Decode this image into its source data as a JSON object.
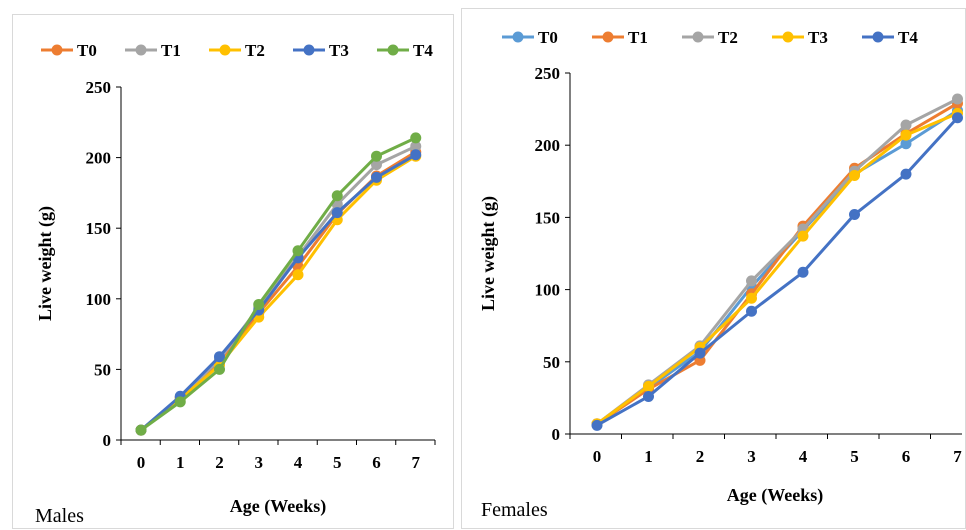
{
  "chart_data": [
    {
      "type": "line",
      "xlabel": "Age (Weeks)",
      "ylabel": "Live weight (g)",
      "caption": "Males",
      "x": [
        0,
        1,
        2,
        3,
        4,
        5,
        6,
        7
      ],
      "xticks": [
        "0",
        "1",
        "2",
        "3",
        "4",
        "5",
        "6",
        "7"
      ],
      "ylim": [
        0,
        250
      ],
      "yticks": [
        "0",
        "50",
        "100",
        "150",
        "200",
        "250"
      ],
      "grid": false,
      "legend_position": "top",
      "series": [
        {
          "name": "T0",
          "color": "#ED7D31",
          "values": [
            7,
            30,
            55,
            90,
            123,
            160,
            187,
            204
          ]
        },
        {
          "name": "T1",
          "color": "#A5A5A5",
          "values": [
            7,
            30,
            57,
            94,
            130,
            167,
            195,
            208
          ]
        },
        {
          "name": "T2",
          "color": "#FFC000",
          "values": [
            7,
            29,
            53,
            87,
            117,
            156,
            184,
            201
          ]
        },
        {
          "name": "T3",
          "color": "#4472C4",
          "values": [
            7,
            31,
            59,
            92,
            129,
            161,
            186,
            202
          ]
        },
        {
          "name": "T4",
          "color": "#70AD47",
          "values": [
            7,
            27,
            50,
            96,
            134,
            173,
            201,
            214
          ]
        }
      ]
    },
    {
      "type": "line",
      "xlabel": "Age (Weeks)",
      "ylabel": "Live weight (g)",
      "caption": "Females",
      "x": [
        0,
        1,
        2,
        3,
        4,
        5,
        6,
        7
      ],
      "xticks": [
        "0",
        "1",
        "2",
        "3",
        "4",
        "5",
        "6",
        "7"
      ],
      "ylim": [
        0,
        250
      ],
      "yticks": [
        "0",
        "50",
        "100",
        "150",
        "200",
        "250"
      ],
      "grid": false,
      "legend_position": "top",
      "series": [
        {
          "name": "T0",
          "color": "#5B9BD5",
          "values": [
            7,
            32,
            57,
            102,
            141,
            180,
            201,
            224
          ]
        },
        {
          "name": "T1",
          "color": "#ED7D31",
          "values": [
            7,
            31,
            51,
            97,
            144,
            184,
            208,
            229
          ]
        },
        {
          "name": "T2",
          "color": "#A5A5A5",
          "values": [
            7,
            34,
            61,
            106,
            142,
            182,
            214,
            232
          ]
        },
        {
          "name": "T3",
          "color": "#FFC000",
          "values": [
            7,
            33,
            60,
            94,
            137,
            179,
            207,
            222
          ]
        },
        {
          "name": "T4",
          "color": "#4472C4",
          "values": [
            6,
            26,
            56,
            85,
            112,
            152,
            180,
            219
          ]
        }
      ]
    }
  ]
}
